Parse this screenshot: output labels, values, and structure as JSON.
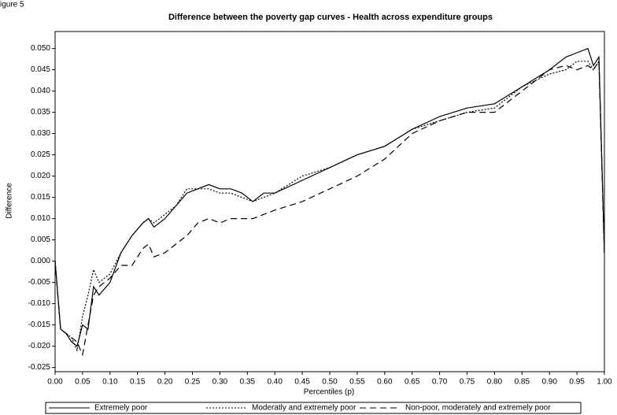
{
  "figure_label": "igure 5",
  "chart_data": {
    "type": "line",
    "title": "Difference between the poverty gap curves - Health across expenditure groups",
    "x_label": "Percentiles (p)",
    "y_label": "Difference",
    "x": [
      0,
      0.01,
      0.02,
      0.03,
      0.04,
      0.05,
      0.06,
      0.07,
      0.08,
      0.1,
      0.12,
      0.14,
      0.16,
      0.17,
      0.18,
      0.2,
      0.22,
      0.24,
      0.26,
      0.28,
      0.3,
      0.32,
      0.34,
      0.36,
      0.38,
      0.4,
      0.45,
      0.5,
      0.55,
      0.6,
      0.65,
      0.7,
      0.75,
      0.8,
      0.85,
      0.9,
      0.93,
      0.95,
      0.97,
      0.98,
      0.99,
      1.0
    ],
    "series": [
      {
        "name": "Extremely poor",
        "color": "#000000",
        "dash": "solid",
        "values": [
          0,
          -0.016,
          -0.017,
          -0.019,
          -0.02,
          -0.015,
          -0.016,
          -0.006,
          -0.008,
          -0.005,
          0.002,
          0.006,
          0.009,
          0.01,
          0.008,
          0.01,
          0.013,
          0.016,
          0.017,
          0.018,
          0.017,
          0.017,
          0.016,
          0.014,
          0.016,
          0.016,
          0.019,
          0.022,
          0.025,
          0.027,
          0.031,
          0.034,
          0.036,
          0.037,
          0.041,
          0.045,
          0.048,
          0.049,
          0.05,
          0.046,
          0.048,
          0.002
        ]
      },
      {
        "name": "Moderatly and extremely poor",
        "color": "#000000",
        "dash": "dotted",
        "values": [
          0,
          -0.016,
          -0.017,
          -0.018,
          -0.021,
          -0.013,
          -0.008,
          -0.002,
          -0.005,
          -0.003,
          0.002,
          0.006,
          0.009,
          0.01,
          0.009,
          0.011,
          0.013,
          0.017,
          0.017,
          0.017,
          0.016,
          0.016,
          0.015,
          0.014,
          0.015,
          0.016,
          0.02,
          0.022,
          0.025,
          0.027,
          0.031,
          0.033,
          0.035,
          0.036,
          0.041,
          0.044,
          0.045,
          0.047,
          0.047,
          0.045,
          0.047,
          0.003
        ]
      },
      {
        "name": "Non-poor, moderately and extremely poor",
        "color": "#000000",
        "dash": "dashed",
        "values": [
          0,
          -0.016,
          -0.017,
          -0.018,
          -0.019,
          -0.022,
          -0.015,
          -0.008,
          -0.006,
          -0.004,
          -0.001,
          -0.001,
          0.003,
          0.004,
          0.001,
          0.002,
          0.004,
          0.006,
          0.009,
          0.01,
          0.009,
          0.01,
          0.01,
          0.01,
          0.011,
          0.012,
          0.014,
          0.017,
          0.02,
          0.024,
          0.03,
          0.033,
          0.035,
          0.035,
          0.04,
          0.045,
          0.046,
          0.045,
          0.046,
          0.045,
          0.047,
          0.001
        ]
      }
    ],
    "xlim": [
      0,
      1
    ],
    "ylim": [
      -0.026,
      0.054
    ],
    "xticks": [
      {
        "value": 0,
        "label": "0.00"
      },
      {
        "value": 0.05,
        "label": "0.05"
      },
      {
        "value": 0.1,
        "label": "0.10"
      },
      {
        "value": 0.15,
        "label": "0.15"
      },
      {
        "value": 0.2,
        "label": "0.20"
      },
      {
        "value": 0.25,
        "label": "0.25"
      },
      {
        "value": 0.3,
        "label": "0.30"
      },
      {
        "value": 0.35,
        "label": "0.35"
      },
      {
        "value": 0.4,
        "label": "0.40"
      },
      {
        "value": 0.45,
        "label": "0.45"
      },
      {
        "value": 0.5,
        "label": "0.50"
      },
      {
        "value": 0.55,
        "label": "0.55"
      },
      {
        "value": 0.6,
        "label": "0.60"
      },
      {
        "value": 0.65,
        "label": "0.65"
      },
      {
        "value": 0.7,
        "label": "0.70"
      },
      {
        "value": 0.75,
        "label": "0.75"
      },
      {
        "value": 0.8,
        "label": "0.80"
      },
      {
        "value": 0.85,
        "label": "0.85"
      },
      {
        "value": 0.9,
        "label": "0.90"
      },
      {
        "value": 0.95,
        "label": "0.95"
      },
      {
        "value": 1,
        "label": "1.00"
      }
    ],
    "yticks": [
      {
        "value": -0.025,
        "label": "-0.025"
      },
      {
        "value": -0.02,
        "label": "-0.020"
      },
      {
        "value": -0.015,
        "label": "-0.015"
      },
      {
        "value": -0.01,
        "label": "-0.010"
      },
      {
        "value": -0.005,
        "label": "-0.005"
      },
      {
        "value": 0,
        "label": "0.000"
      },
      {
        "value": 0.005,
        "label": "0.005"
      },
      {
        "value": 0.01,
        "label": "0.010"
      },
      {
        "value": 0.015,
        "label": "0.015"
      },
      {
        "value": 0.02,
        "label": "0.020"
      },
      {
        "value": 0.025,
        "label": "0.025"
      },
      {
        "value": 0.03,
        "label": "0.030"
      },
      {
        "value": 0.035,
        "label": "0.035"
      },
      {
        "value": 0.04,
        "label": "0.040"
      },
      {
        "value": 0.045,
        "label": "0.045"
      },
      {
        "value": 0.05,
        "label": "0.050"
      }
    ],
    "legend": "bottom"
  }
}
